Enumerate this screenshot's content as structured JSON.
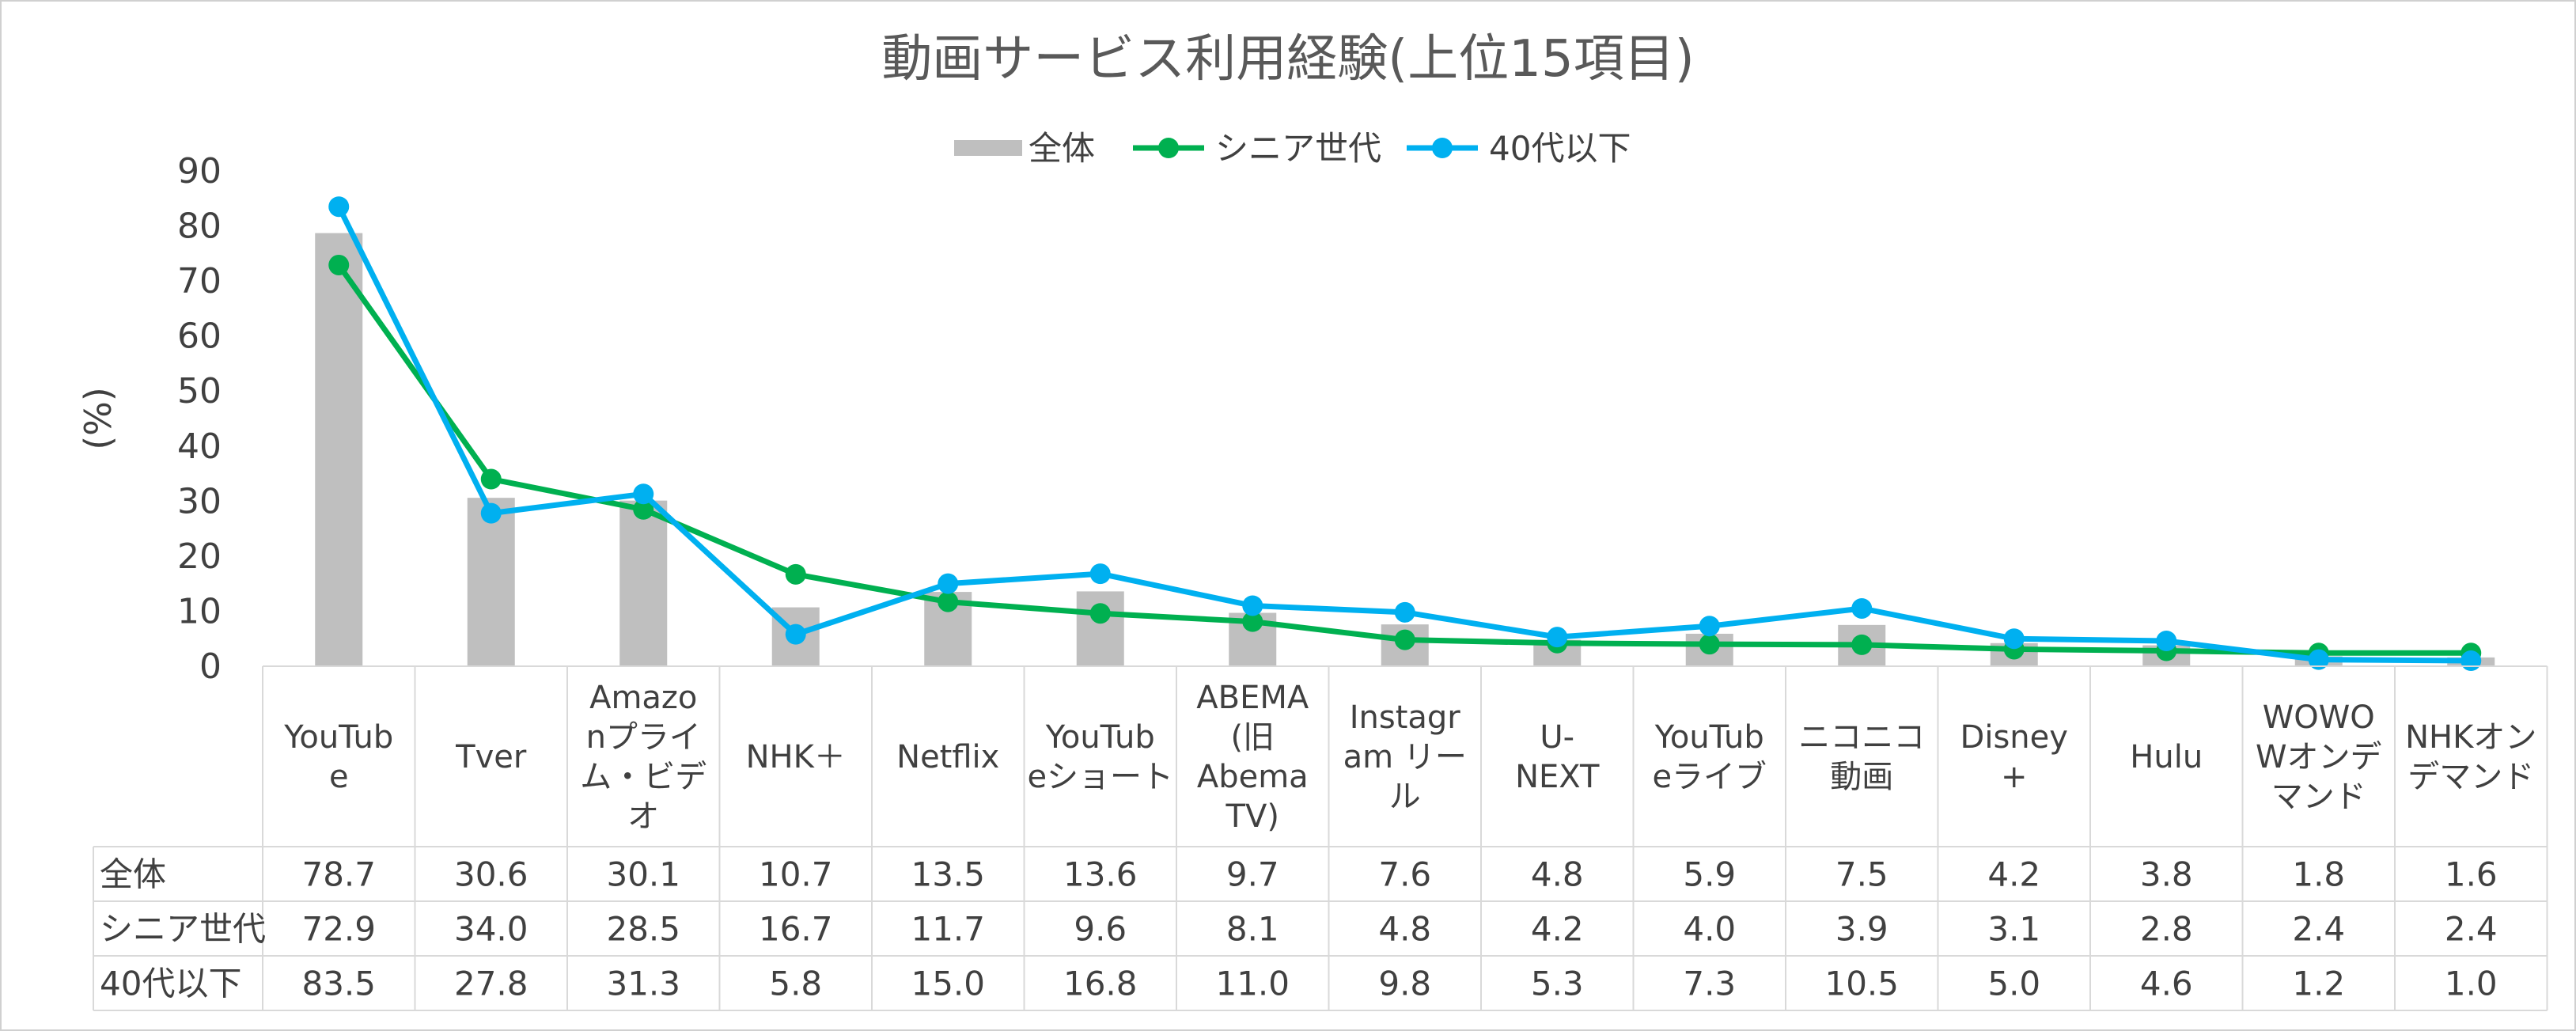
{
  "chart_data": {
    "type": "bar",
    "title": "動画サービス利用経験(上位15項目)",
    "ylabel": "(%)",
    "ylim": [
      0,
      90
    ],
    "yticks": [
      0,
      10,
      20,
      30,
      40,
      50,
      60,
      70,
      80,
      90
    ],
    "grid": false,
    "legend_position": "top-center",
    "categories": [
      [
        "YouTub",
        "e"
      ],
      [
        "Tver"
      ],
      [
        "Amazo",
        "nプライ",
        "ム・ビデ",
        "オ"
      ],
      [
        "NHK＋"
      ],
      [
        "Netflix"
      ],
      [
        "YouTub",
        "eショート"
      ],
      [
        "ABEMA",
        "(旧",
        "Abema",
        "TV)"
      ],
      [
        "Instagr",
        "am リー",
        "ル"
      ],
      [
        "U-",
        "NEXT"
      ],
      [
        "YouTub",
        "eライブ"
      ],
      [
        "ニコニコ",
        "動画"
      ],
      [
        "Disney",
        "+"
      ],
      [
        "Hulu"
      ],
      [
        "WOWO",
        "Wオンデ",
        "マンド"
      ],
      [
        "NHKオン",
        "デマンド"
      ]
    ],
    "series": [
      {
        "name": "全体",
        "kind": "bar",
        "color": "#bfbfbf",
        "values": [
          78.7,
          30.6,
          30.1,
          10.7,
          13.5,
          13.6,
          9.7,
          7.6,
          4.8,
          5.9,
          7.5,
          4.2,
          3.8,
          1.8,
          1.6
        ],
        "labels": [
          "78.7",
          "30.6",
          "30.1",
          "10.7",
          "13.5",
          "13.6",
          "9.7",
          "7.6",
          "4.8",
          "5.9",
          "7.5",
          "4.2",
          "3.8",
          "1.8",
          "1.6"
        ]
      },
      {
        "name": "シニア世代",
        "kind": "line",
        "color": "#00b050",
        "values": [
          72.9,
          34.0,
          28.5,
          16.7,
          11.7,
          9.6,
          8.1,
          4.8,
          4.2,
          4.0,
          3.9,
          3.1,
          2.8,
          2.4,
          2.4
        ],
        "labels": [
          "72.9",
          "34.0",
          "28.5",
          "16.7",
          "11.7",
          "9.6",
          "8.1",
          "4.8",
          "4.2",
          "4.0",
          "3.9",
          "3.1",
          "2.8",
          "2.4",
          "2.4"
        ]
      },
      {
        "name": "40代以下",
        "kind": "line",
        "color": "#00b0f0",
        "values": [
          83.5,
          27.8,
          31.3,
          5.8,
          15.0,
          16.8,
          11.0,
          9.8,
          5.3,
          7.3,
          10.5,
          5.0,
          4.6,
          1.2,
          1.0
        ],
        "labels": [
          "83.5",
          "27.8",
          "31.3",
          "5.8",
          "15.0",
          "16.8",
          "11.0",
          "9.8",
          "5.3",
          "7.3",
          "10.5",
          "5.0",
          "4.6",
          "1.2",
          "1.0"
        ]
      }
    ]
  }
}
